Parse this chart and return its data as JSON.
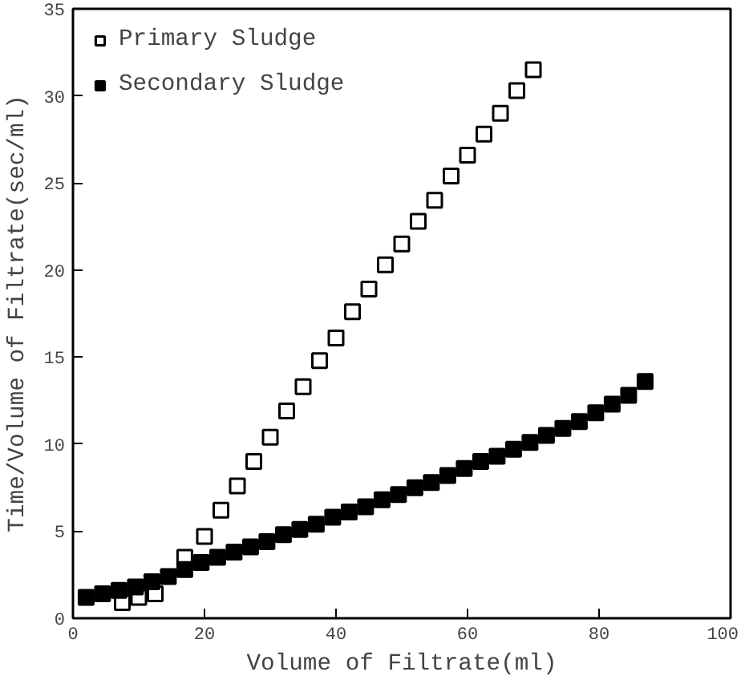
{
  "chart_data": {
    "type": "scatter",
    "xlabel": "Volume of Filtrate(ml)",
    "ylabel": "Time/Volume of Filtrate(sec/ml)",
    "xlim": [
      0,
      100
    ],
    "ylim": [
      0,
      35
    ],
    "xticks": [
      0,
      20,
      40,
      60,
      80,
      100
    ],
    "yticks": [
      0,
      5,
      10,
      15,
      20,
      25,
      30,
      35
    ],
    "grid": false,
    "legend": "top left",
    "marker": "square",
    "series": [
      {
        "name": "Primary Sludge",
        "color": "#ffffff",
        "x": [
          7.5,
          10,
          12.5,
          17,
          20,
          22.5,
          25,
          27.5,
          30,
          32.5,
          35,
          37.5,
          40,
          42.5,
          45,
          47.5,
          50,
          52.5,
          55,
          57.5,
          60,
          62.5,
          65,
          67.5,
          70
        ],
        "values": [
          0.9,
          1.2,
          1.4,
          3.5,
          4.7,
          6.2,
          7.6,
          9.0,
          10.4,
          11.9,
          13.3,
          14.8,
          16.1,
          17.6,
          18.9,
          20.3,
          21.5,
          22.8,
          24.0,
          25.4,
          26.6,
          27.8,
          29.0,
          30.3,
          31.5
        ]
      },
      {
        "name": "Secondary Sludge",
        "color": "#000000",
        "x": [
          2,
          4.5,
          7,
          9.5,
          12,
          14.5,
          17,
          19.5,
          22,
          24.5,
          27,
          29.5,
          32,
          34.5,
          37,
          39.5,
          42,
          44.5,
          47,
          49.5,
          52,
          54.5,
          57,
          59.5,
          62,
          64.5,
          67,
          69.5,
          72,
          74.5,
          77,
          79.5,
          82,
          84.5,
          87
        ],
        "values": [
          1.2,
          1.4,
          1.6,
          1.8,
          2.1,
          2.4,
          2.8,
          3.2,
          3.5,
          3.8,
          4.1,
          4.4,
          4.8,
          5.1,
          5.4,
          5.8,
          6.1,
          6.4,
          6.8,
          7.1,
          7.5,
          7.8,
          8.2,
          8.6,
          9.0,
          9.3,
          9.7,
          10.1,
          10.5,
          10.9,
          11.3,
          11.8,
          12.3,
          12.8,
          13.6
        ]
      }
    ]
  }
}
